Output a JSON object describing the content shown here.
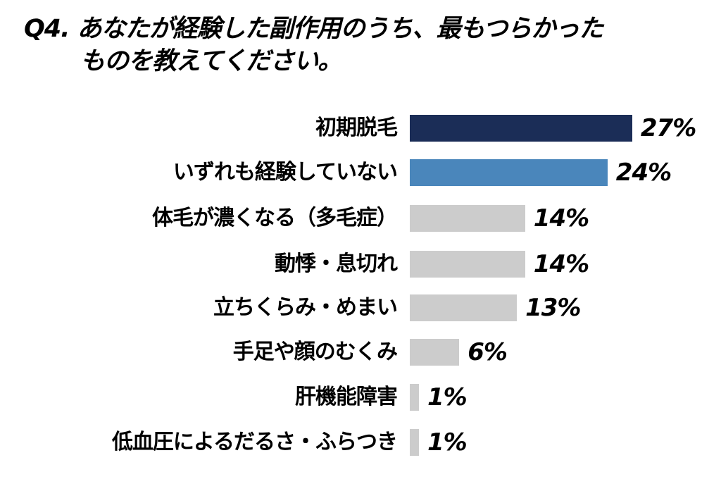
{
  "title": {
    "line1": "Q4. あなたが経験した副作用のうち、最もつらかった",
    "line2": "ものを教えてください。"
  },
  "chart_data": {
    "type": "bar",
    "orientation": "horizontal",
    "title": "Q4. あなたが経験した副作用のうち、最もつらかったものを教えてください。",
    "xlabel": "",
    "ylabel": "",
    "grid": false,
    "legend": null,
    "unit": "%",
    "categories": [
      "初期脱毛",
      "いずれも経験していない",
      "体毛が濃くなる（多毛症）",
      "動悸・息切れ",
      "立ちくらみ・めまい",
      "手足や顔のむくみ",
      "肝機能障害",
      "低血圧によるだるさ・ふらつき"
    ],
    "values": [
      27,
      24,
      14,
      14,
      13,
      6,
      1,
      1
    ],
    "value_labels": [
      "27%",
      "24%",
      "14%",
      "14%",
      "13%",
      "6%",
      "1%",
      "1%"
    ],
    "colors": [
      "#1b2d57",
      "#4a86bb",
      "#cccccc",
      "#cccccc",
      "#cccccc",
      "#cccccc",
      "#cccccc",
      "#cccccc"
    ]
  }
}
